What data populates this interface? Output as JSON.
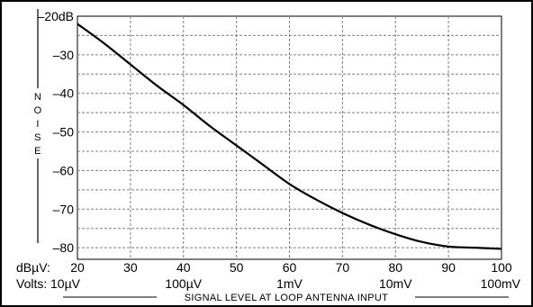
{
  "chart_data": {
    "type": "line",
    "title": "",
    "ylabel": "NOISE",
    "xlabel": "SIGNAL LEVEL AT LOOP ANTENNA INPUT",
    "x_row_label": "dBµV:",
    "volts_row_label": "Volts:",
    "xlim": [
      20,
      100
    ],
    "ylim": [
      -83,
      -20
    ],
    "grid": true,
    "x_ticks": [
      20,
      30,
      40,
      50,
      60,
      70,
      80,
      90,
      100
    ],
    "y_ticks": [
      -20,
      -30,
      -40,
      -50,
      -60,
      -70,
      -80
    ],
    "y_tick_labels": [
      "–20dB",
      "–30",
      "–40",
      "–50",
      "–60",
      "–70",
      "–80"
    ],
    "volts_labels": [
      {
        "x": 20,
        "label": "10µV"
      },
      {
        "x": 40,
        "label": "100µV"
      },
      {
        "x": 60,
        "label": "1mV"
      },
      {
        "x": 80,
        "label": "10mV"
      },
      {
        "x": 100,
        "label": "100mV"
      }
    ],
    "series": [
      {
        "x": [
          20,
          25,
          30,
          35,
          40,
          45,
          50,
          55,
          60,
          65,
          70,
          75,
          80,
          85,
          90,
          95,
          100
        ],
        "y": [
          -22,
          -27,
          -32.5,
          -38,
          -43,
          -48.5,
          -53.5,
          -58.5,
          -63.5,
          -67.5,
          -71,
          -74,
          -76.5,
          -78.5,
          -79.7,
          -80,
          -80.3
        ]
      }
    ],
    "line_color": "#000000",
    "grid_color": "#808080"
  }
}
